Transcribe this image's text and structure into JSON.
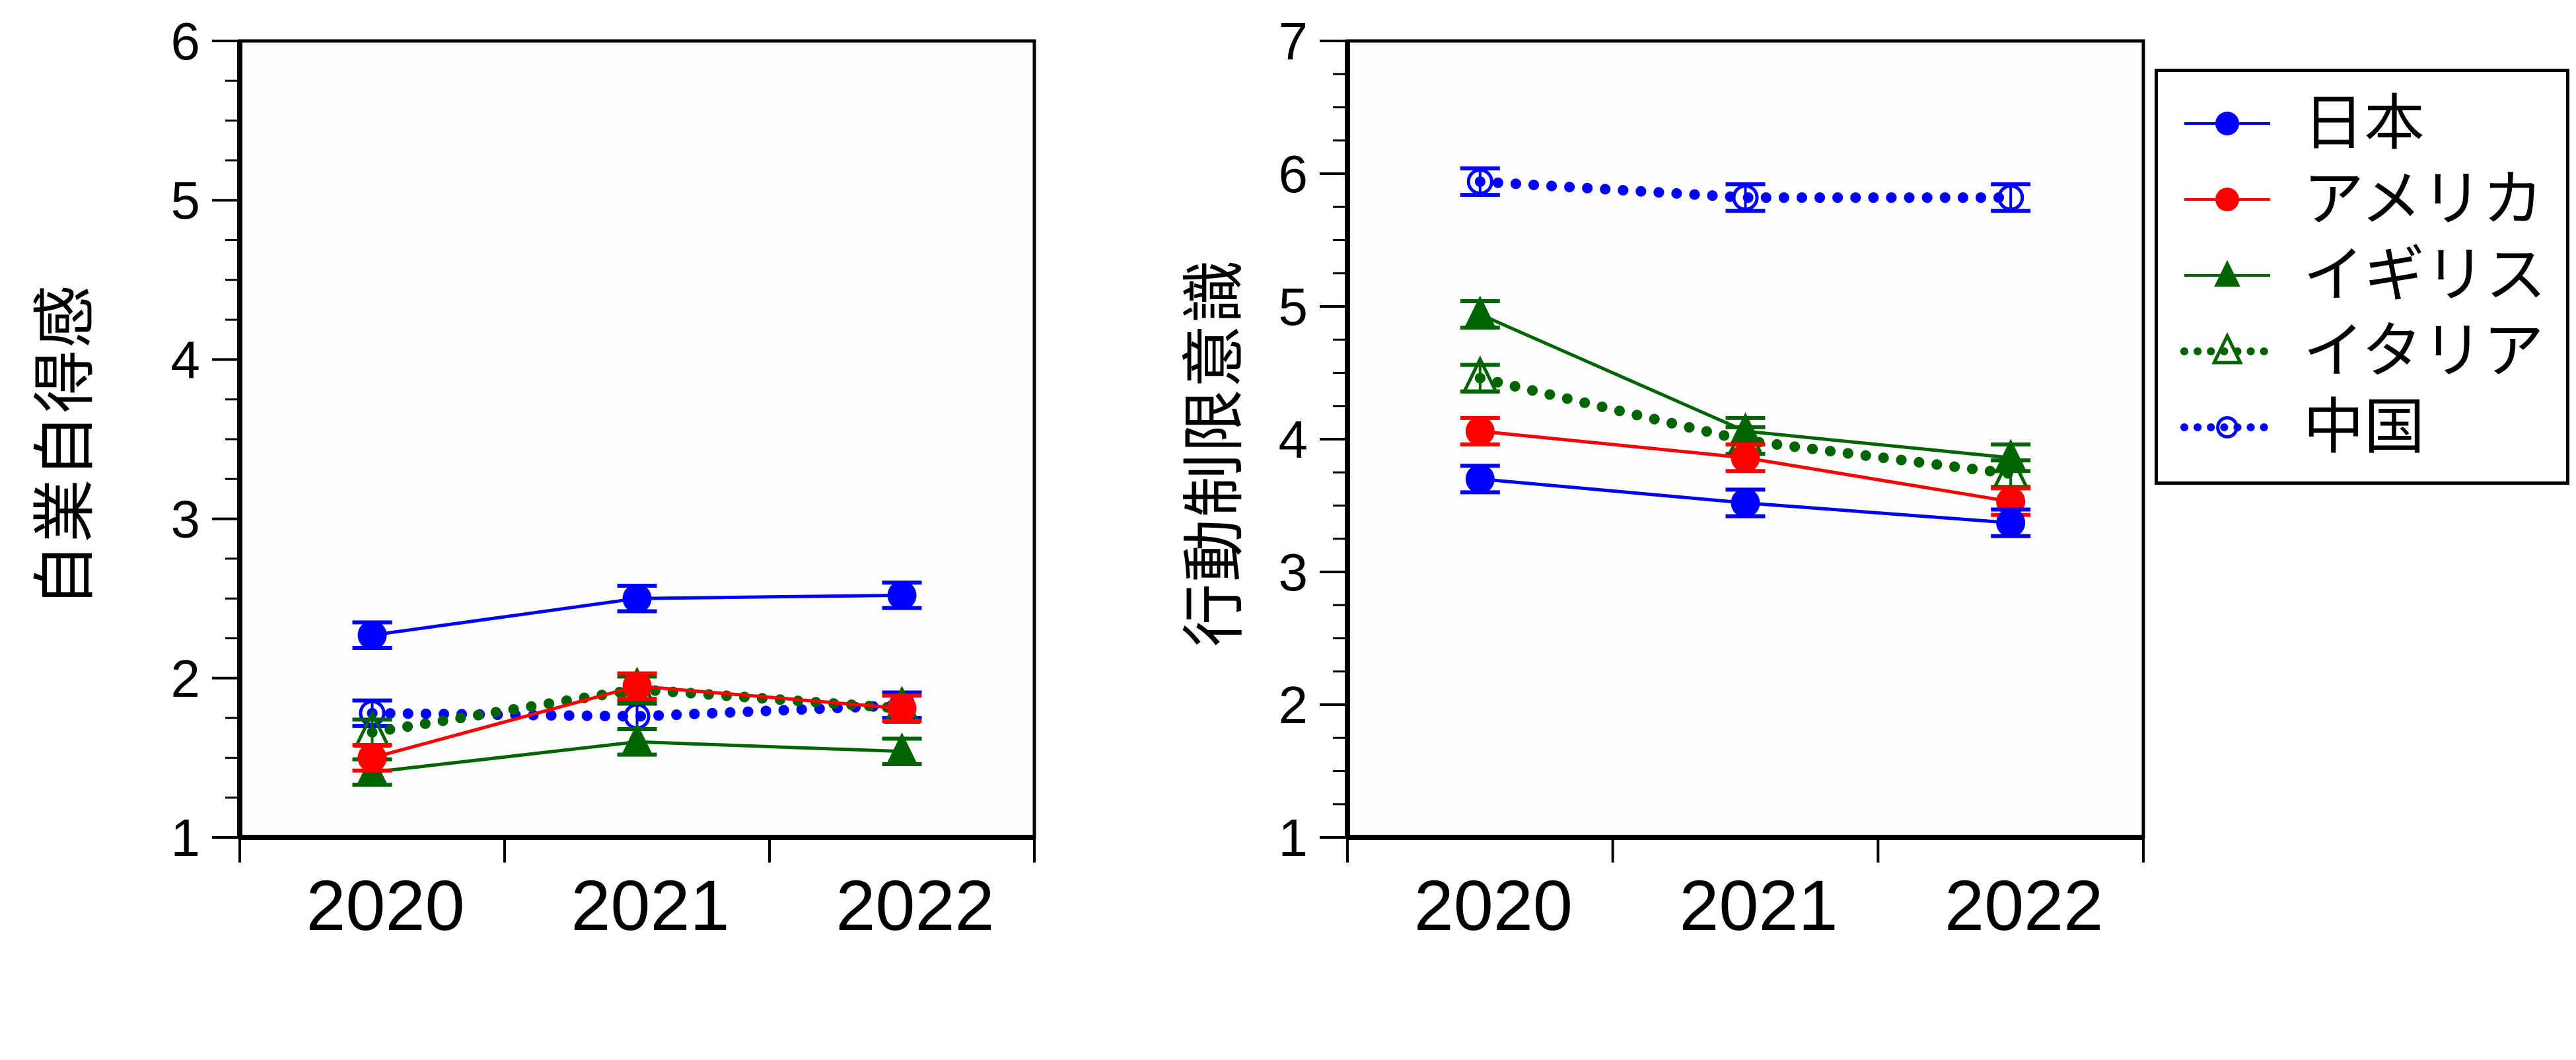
{
  "chart_data": [
    {
      "type": "line",
      "title": "",
      "xlabel": "",
      "ylabel": "自業自得感",
      "categories": [
        "2020",
        "2021",
        "2022"
      ],
      "ylim": [
        1,
        6
      ],
      "yticks": [
        1,
        2,
        3,
        4,
        5,
        6
      ],
      "minor_ticks_per_unit": 4,
      "grid": false,
      "error_bars": true,
      "series": [
        {
          "name": "日本",
          "values": [
            2.27,
            2.5,
            2.52
          ],
          "err": [
            0.08,
            0.08,
            0.08
          ],
          "color": "#0000ff",
          "line": "solid",
          "marker": "filled-circle"
        },
        {
          "name": "アメリカ",
          "values": [
            1.5,
            1.95,
            1.81
          ],
          "err": [
            0.08,
            0.08,
            0.08
          ],
          "color": "#ff0000",
          "line": "solid",
          "marker": "filled-circle"
        },
        {
          "name": "イギリス",
          "values": [
            1.41,
            1.6,
            1.54
          ],
          "err": [
            0.08,
            0.08,
            0.08
          ],
          "color": "#006400",
          "line": "solid",
          "marker": "filled-triangle"
        },
        {
          "name": "イタリア",
          "values": [
            1.66,
            1.93,
            1.81
          ],
          "err": [
            0.08,
            0.08,
            0.08
          ],
          "color": "#006400",
          "line": "dotted",
          "marker": "open-triangle"
        },
        {
          "name": "中国",
          "values": [
            1.78,
            1.76,
            1.83
          ],
          "err": [
            0.08,
            0.08,
            0.08
          ],
          "color": "#0000ff",
          "line": "dotted",
          "marker": "open-circle"
        }
      ]
    },
    {
      "type": "line",
      "title": "",
      "xlabel": "",
      "ylabel": "行動制限意識",
      "categories": [
        "2020",
        "2021",
        "2022"
      ],
      "ylim": [
        1,
        7
      ],
      "yticks": [
        1,
        2,
        3,
        4,
        5,
        6,
        7
      ],
      "minor_ticks_per_unit": 4,
      "grid": false,
      "error_bars": true,
      "legend_position": "right",
      "series": [
        {
          "name": "日本",
          "values": [
            3.7,
            3.52,
            3.37
          ],
          "err": [
            0.1,
            0.1,
            0.1
          ],
          "color": "#0000ff",
          "line": "solid",
          "marker": "filled-circle"
        },
        {
          "name": "アメリカ",
          "values": [
            4.06,
            3.86,
            3.53
          ],
          "err": [
            0.1,
            0.1,
            0.1
          ],
          "color": "#ff0000",
          "line": "solid",
          "marker": "filled-circle"
        },
        {
          "name": "イギリス",
          "values": [
            4.94,
            4.06,
            3.86
          ],
          "err": [
            0.1,
            0.1,
            0.1
          ],
          "color": "#006400",
          "line": "solid",
          "marker": "filled-triangle"
        },
        {
          "name": "イタリア",
          "values": [
            4.46,
            3.99,
            3.74
          ],
          "err": [
            0.1,
            0.1,
            0.1
          ],
          "color": "#006400",
          "line": "dotted",
          "marker": "open-triangle"
        },
        {
          "name": "中国",
          "values": [
            5.94,
            5.82,
            5.82
          ],
          "err": [
            0.1,
            0.1,
            0.1
          ],
          "color": "#0000ff",
          "line": "dotted",
          "marker": "open-circle"
        }
      ]
    }
  ],
  "legend": {
    "items": [
      {
        "label": "日本",
        "color": "#0000ff",
        "line": "solid",
        "marker": "filled-circle"
      },
      {
        "label": "アメリカ",
        "color": "#ff0000",
        "line": "solid",
        "marker": "filled-circle"
      },
      {
        "label": "イギリス",
        "color": "#006400",
        "line": "solid",
        "marker": "filled-triangle"
      },
      {
        "label": "イタリア",
        "color": "#006400",
        "line": "dotted",
        "marker": "open-triangle"
      },
      {
        "label": "中国",
        "color": "#0000ff",
        "line": "dotted",
        "marker": "open-circle"
      }
    ]
  }
}
